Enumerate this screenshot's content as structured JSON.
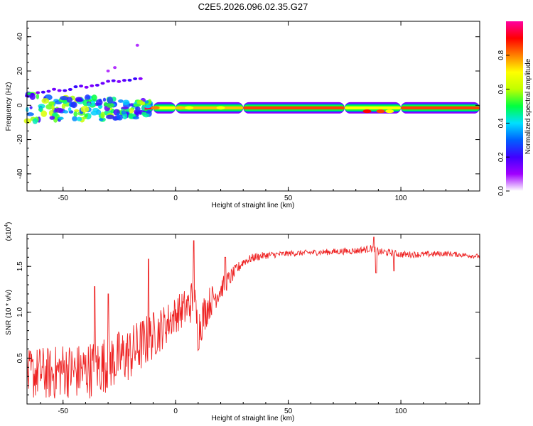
{
  "title": "C2E5.2026.096.02.35.G27",
  "chart_data": [
    {
      "type": "heatmap",
      "name": "spectrogram",
      "xlabel": "Height of straight line (km)",
      "ylabel": "Frequency (Hz)",
      "xlim": [
        -66,
        135
      ],
      "ylim": [
        -50,
        49
      ],
      "xticks": [
        -50,
        0,
        50,
        100
      ],
      "yticks": [
        -40,
        -20,
        0,
        20,
        40
      ],
      "xtick_labels": [
        "-50",
        "0",
        "50",
        "100"
      ],
      "ytick_labels": [
        "-40",
        "-20",
        "0",
        "20",
        "40"
      ],
      "colorbar": {
        "label": "Normalized spectral amplitude",
        "range": [
          0,
          1
        ],
        "ticks": [
          0.0,
          0.2,
          0.4,
          0.6,
          0.8
        ],
        "tick_labels": [
          "0.0",
          "0.2",
          "0.4",
          "0.6",
          "0.8"
        ],
        "colors": [
          "#ffffff",
          "#a000ff",
          "#4000ff",
          "#0060ff",
          "#00e0ff",
          "#00ff40",
          "#c0ff00",
          "#ffff00",
          "#ff8000",
          "#ff0000",
          "#ff00a0"
        ]
      },
      "band": {
        "description_free": true,
        "center_freq": -1.5,
        "segments": [
          {
            "x0": -15,
            "x1": -10,
            "intensity": 0.95
          },
          {
            "x0": -10,
            "x1": 0,
            "intensity": 0.7
          },
          {
            "x0": 0,
            "x1": 30,
            "intensity": 0.75
          },
          {
            "x0": 30,
            "x1": 75,
            "intensity": 0.85
          },
          {
            "x0": 75,
            "x1": 100,
            "intensity": 0.7
          },
          {
            "x0": 100,
            "x1": 135,
            "intensity": 0.85
          }
        ]
      }
    },
    {
      "type": "line",
      "name": "snr",
      "xlabel": "Height of straight line (km)",
      "ylabel": "SNR (10 * v/v)",
      "multiplier_label": "(x10",
      "multiplier_exp": "4",
      "multiplier_close": ")",
      "xlim": [
        -66,
        135
      ],
      "ylim": [
        0,
        18500
      ],
      "xticks": [
        -50,
        0,
        50,
        100
      ],
      "yticks": [
        5000,
        10000,
        15000
      ],
      "xtick_labels": [
        "-50",
        "0",
        "50",
        "100"
      ],
      "ytick_labels": [
        "0.5",
        "1.0",
        "1.5"
      ],
      "color": "#ee2222",
      "series_points": [
        [
          -66,
          3000
        ],
        [
          -60,
          3500
        ],
        [
          -55,
          3200
        ],
        [
          -50,
          3800
        ],
        [
          -45,
          3500
        ],
        [
          -40,
          3600
        ],
        [
          -35,
          4000
        ],
        [
          -30,
          4500
        ],
        [
          -25,
          5000
        ],
        [
          -20,
          5500
        ],
        [
          -15,
          6500
        ],
        [
          -10,
          7500
        ],
        [
          -5,
          8500
        ],
        [
          0,
          9800
        ],
        [
          5,
          10500
        ],
        [
          8,
          11500
        ],
        [
          10,
          8000
        ],
        [
          12,
          9500
        ],
        [
          15,
          11000
        ],
        [
          20,
          12500
        ],
        [
          25,
          14000
        ],
        [
          30,
          15500
        ],
        [
          35,
          16000
        ],
        [
          40,
          16200
        ],
        [
          50,
          16400
        ],
        [
          60,
          16500
        ],
        [
          70,
          16600
        ],
        [
          80,
          16700
        ],
        [
          88,
          17000
        ],
        [
          90,
          16600
        ],
        [
          95,
          16500
        ],
        [
          100,
          16300
        ],
        [
          110,
          16300
        ],
        [
          120,
          16400
        ],
        [
          130,
          16200
        ],
        [
          135,
          16100
        ]
      ],
      "noise_amplitude": [
        [
          -66,
          2800
        ],
        [
          -35,
          3200
        ],
        [
          -15,
          3000
        ],
        [
          0,
          2000
        ],
        [
          10,
          2500
        ],
        [
          20,
          1200
        ],
        [
          30,
          500
        ],
        [
          50,
          300
        ],
        [
          90,
          400
        ],
        [
          135,
          250
        ]
      ],
      "spikes": [
        [
          -36,
          12800
        ],
        [
          -30,
          12000
        ],
        [
          -12,
          15800
        ],
        [
          8,
          17800
        ],
        [
          22,
          16000
        ],
        [
          27,
          15200
        ],
        [
          88,
          18200
        ],
        [
          89,
          14300
        ],
        [
          97,
          14500
        ]
      ]
    }
  ]
}
